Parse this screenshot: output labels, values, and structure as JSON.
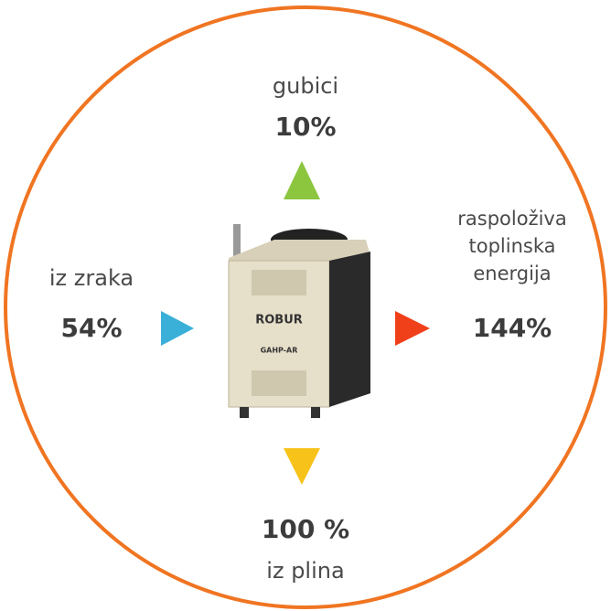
{
  "nodes": {
    "top": {
      "label": "gubici",
      "value": "10%"
    },
    "left": {
      "label": "iz zraka",
      "value": "54%"
    },
    "right": {
      "label": [
        "raspoloživa",
        "toplinska",
        "energija"
      ],
      "value": "144%"
    },
    "bottom": {
      "value": "100 %",
      "label": "iz plina"
    }
  },
  "device": {
    "brand": "ROBUR",
    "model": "GAHP-AR"
  }
}
